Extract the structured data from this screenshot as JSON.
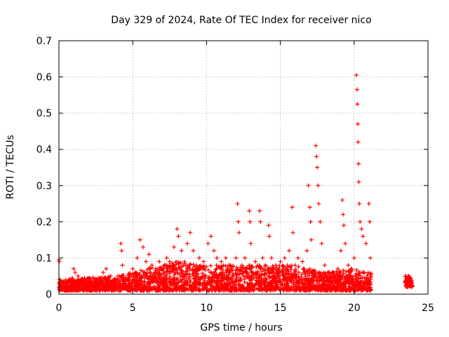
{
  "chart_data": {
    "type": "scatter",
    "title": "Day 329 of 2024, Rate Of TEC Index for receiver nico",
    "xlabel": "GPS time / hours",
    "ylabel": "ROTI / TECUs",
    "xlim": [
      0,
      25
    ],
    "ylim": [
      0,
      0.7
    ],
    "xticks": [
      "0",
      "5",
      "10",
      "15",
      "20",
      "25"
    ],
    "yticks": [
      "0",
      "0.1",
      "0.2",
      "0.3",
      "0.4",
      "0.5",
      "0.6",
      "0.7"
    ],
    "grid": true,
    "marker": "+",
    "color": "#ff0000",
    "series": [
      {
        "points": [
          [
            0.0,
            0.095
          ],
          [
            0.02,
            0.09
          ],
          [
            0.05,
            0.04
          ],
          [
            0.1,
            0.03
          ],
          [
            0.3,
            0.035
          ],
          [
            0.5,
            0.03
          ],
          [
            0.7,
            0.04
          ],
          [
            0.9,
            0.045
          ],
          [
            1.0,
            0.07
          ],
          [
            1.1,
            0.06
          ],
          [
            1.3,
            0.05
          ],
          [
            1.5,
            0.04
          ],
          [
            1.8,
            0.035
          ],
          [
            2.0,
            0.03
          ],
          [
            2.3,
            0.045
          ],
          [
            2.5,
            0.04
          ],
          [
            2.8,
            0.03
          ],
          [
            3.0,
            0.06
          ],
          [
            3.2,
            0.07
          ],
          [
            3.5,
            0.05
          ],
          [
            3.8,
            0.04
          ],
          [
            4.0,
            0.05
          ],
          [
            4.2,
            0.14
          ],
          [
            4.25,
            0.12
          ],
          [
            4.3,
            0.08
          ],
          [
            4.5,
            0.04
          ],
          [
            4.8,
            0.05
          ],
          [
            5.0,
            0.07
          ],
          [
            5.3,
            0.1
          ],
          [
            5.5,
            0.15
          ],
          [
            5.7,
            0.13
          ],
          [
            5.9,
            0.09
          ],
          [
            6.1,
            0.11
          ],
          [
            6.3,
            0.08
          ],
          [
            6.5,
            0.06
          ],
          [
            6.8,
            0.09
          ],
          [
            7.0,
            0.07
          ],
          [
            7.3,
            0.1
          ],
          [
            7.5,
            0.09
          ],
          [
            7.8,
            0.13
          ],
          [
            8.0,
            0.18
          ],
          [
            8.1,
            0.16
          ],
          [
            8.3,
            0.12
          ],
          [
            8.5,
            0.09
          ],
          [
            8.7,
            0.14
          ],
          [
            8.9,
            0.17
          ],
          [
            9.1,
            0.12
          ],
          [
            9.3,
            0.08
          ],
          [
            9.5,
            0.1
          ],
          [
            9.8,
            0.09
          ],
          [
            10.1,
            0.14
          ],
          [
            10.3,
            0.16
          ],
          [
            10.5,
            0.12
          ],
          [
            10.7,
            0.1
          ],
          [
            11.0,
            0.09
          ],
          [
            11.3,
            0.1
          ],
          [
            11.6,
            0.08
          ],
          [
            12.0,
            0.1
          ],
          [
            12.1,
            0.25
          ],
          [
            12.15,
            0.2
          ],
          [
            12.2,
            0.17
          ],
          [
            12.4,
            0.08
          ],
          [
            12.6,
            0.1
          ],
          [
            12.9,
            0.23
          ],
          [
            12.95,
            0.2
          ],
          [
            13.0,
            0.14
          ],
          [
            13.3,
            0.09
          ],
          [
            13.6,
            0.23
          ],
          [
            13.65,
            0.2
          ],
          [
            13.8,
            0.1
          ],
          [
            14.0,
            0.08
          ],
          [
            14.2,
            0.19
          ],
          [
            14.25,
            0.16
          ],
          [
            14.4,
            0.1
          ],
          [
            14.7,
            0.08
          ],
          [
            15.0,
            0.09
          ],
          [
            15.3,
            0.1
          ],
          [
            15.6,
            0.12
          ],
          [
            15.8,
            0.24
          ],
          [
            15.85,
            0.17
          ],
          [
            16.0,
            0.08
          ],
          [
            16.2,
            0.1
          ],
          [
            16.5,
            0.09
          ],
          [
            16.8,
            0.12
          ],
          [
            16.9,
            0.3
          ],
          [
            17.0,
            0.24
          ],
          [
            17.05,
            0.2
          ],
          [
            17.1,
            0.15
          ],
          [
            17.4,
            0.41
          ],
          [
            17.45,
            0.38
          ],
          [
            17.5,
            0.35
          ],
          [
            17.55,
            0.3
          ],
          [
            17.6,
            0.25
          ],
          [
            17.7,
            0.2
          ],
          [
            17.8,
            0.14
          ],
          [
            18.0,
            0.08
          ],
          [
            18.2,
            0.06
          ],
          [
            18.4,
            0.05
          ],
          [
            18.6,
            0.06
          ],
          [
            18.9,
            0.07
          ],
          [
            19.1,
            0.12
          ],
          [
            19.2,
            0.26
          ],
          [
            19.25,
            0.22
          ],
          [
            19.3,
            0.19
          ],
          [
            19.4,
            0.14
          ],
          [
            19.6,
            0.08
          ],
          [
            19.8,
            0.07
          ],
          [
            20.0,
            0.1
          ],
          [
            20.15,
            0.605
          ],
          [
            20.2,
            0.565
          ],
          [
            20.22,
            0.525
          ],
          [
            20.25,
            0.47
          ],
          [
            20.27,
            0.42
          ],
          [
            20.3,
            0.36
          ],
          [
            20.32,
            0.31
          ],
          [
            20.35,
            0.25
          ],
          [
            20.4,
            0.2
          ],
          [
            20.5,
            0.18
          ],
          [
            20.6,
            0.16
          ],
          [
            20.8,
            0.14
          ],
          [
            21.0,
            0.25
          ],
          [
            21.05,
            0.2
          ],
          [
            21.1,
            0.1
          ],
          [
            21.15,
            0.05
          ],
          [
            23.5,
            0.05
          ],
          [
            23.6,
            0.04
          ],
          [
            23.7,
            0.035
          ],
          [
            23.8,
            0.045
          ],
          [
            23.9,
            0.03
          ]
        ]
      }
    ],
    "bands": [
      {
        "x0": 0.0,
        "x1": 21.15,
        "y0": 0.01,
        "y1": 0.05
      },
      {
        "x0": 23.45,
        "x1": 23.95,
        "y0": 0.02,
        "y1": 0.05
      }
    ],
    "band_peaks": [
      [
        0,
        0.04
      ],
      [
        2,
        0.045
      ],
      [
        4,
        0.05
      ],
      [
        6,
        0.07
      ],
      [
        8,
        0.09
      ],
      [
        10,
        0.08
      ],
      [
        12,
        0.08
      ],
      [
        14,
        0.08
      ],
      [
        16,
        0.08
      ],
      [
        18,
        0.06
      ],
      [
        20,
        0.07
      ],
      [
        21,
        0.06
      ]
    ]
  }
}
